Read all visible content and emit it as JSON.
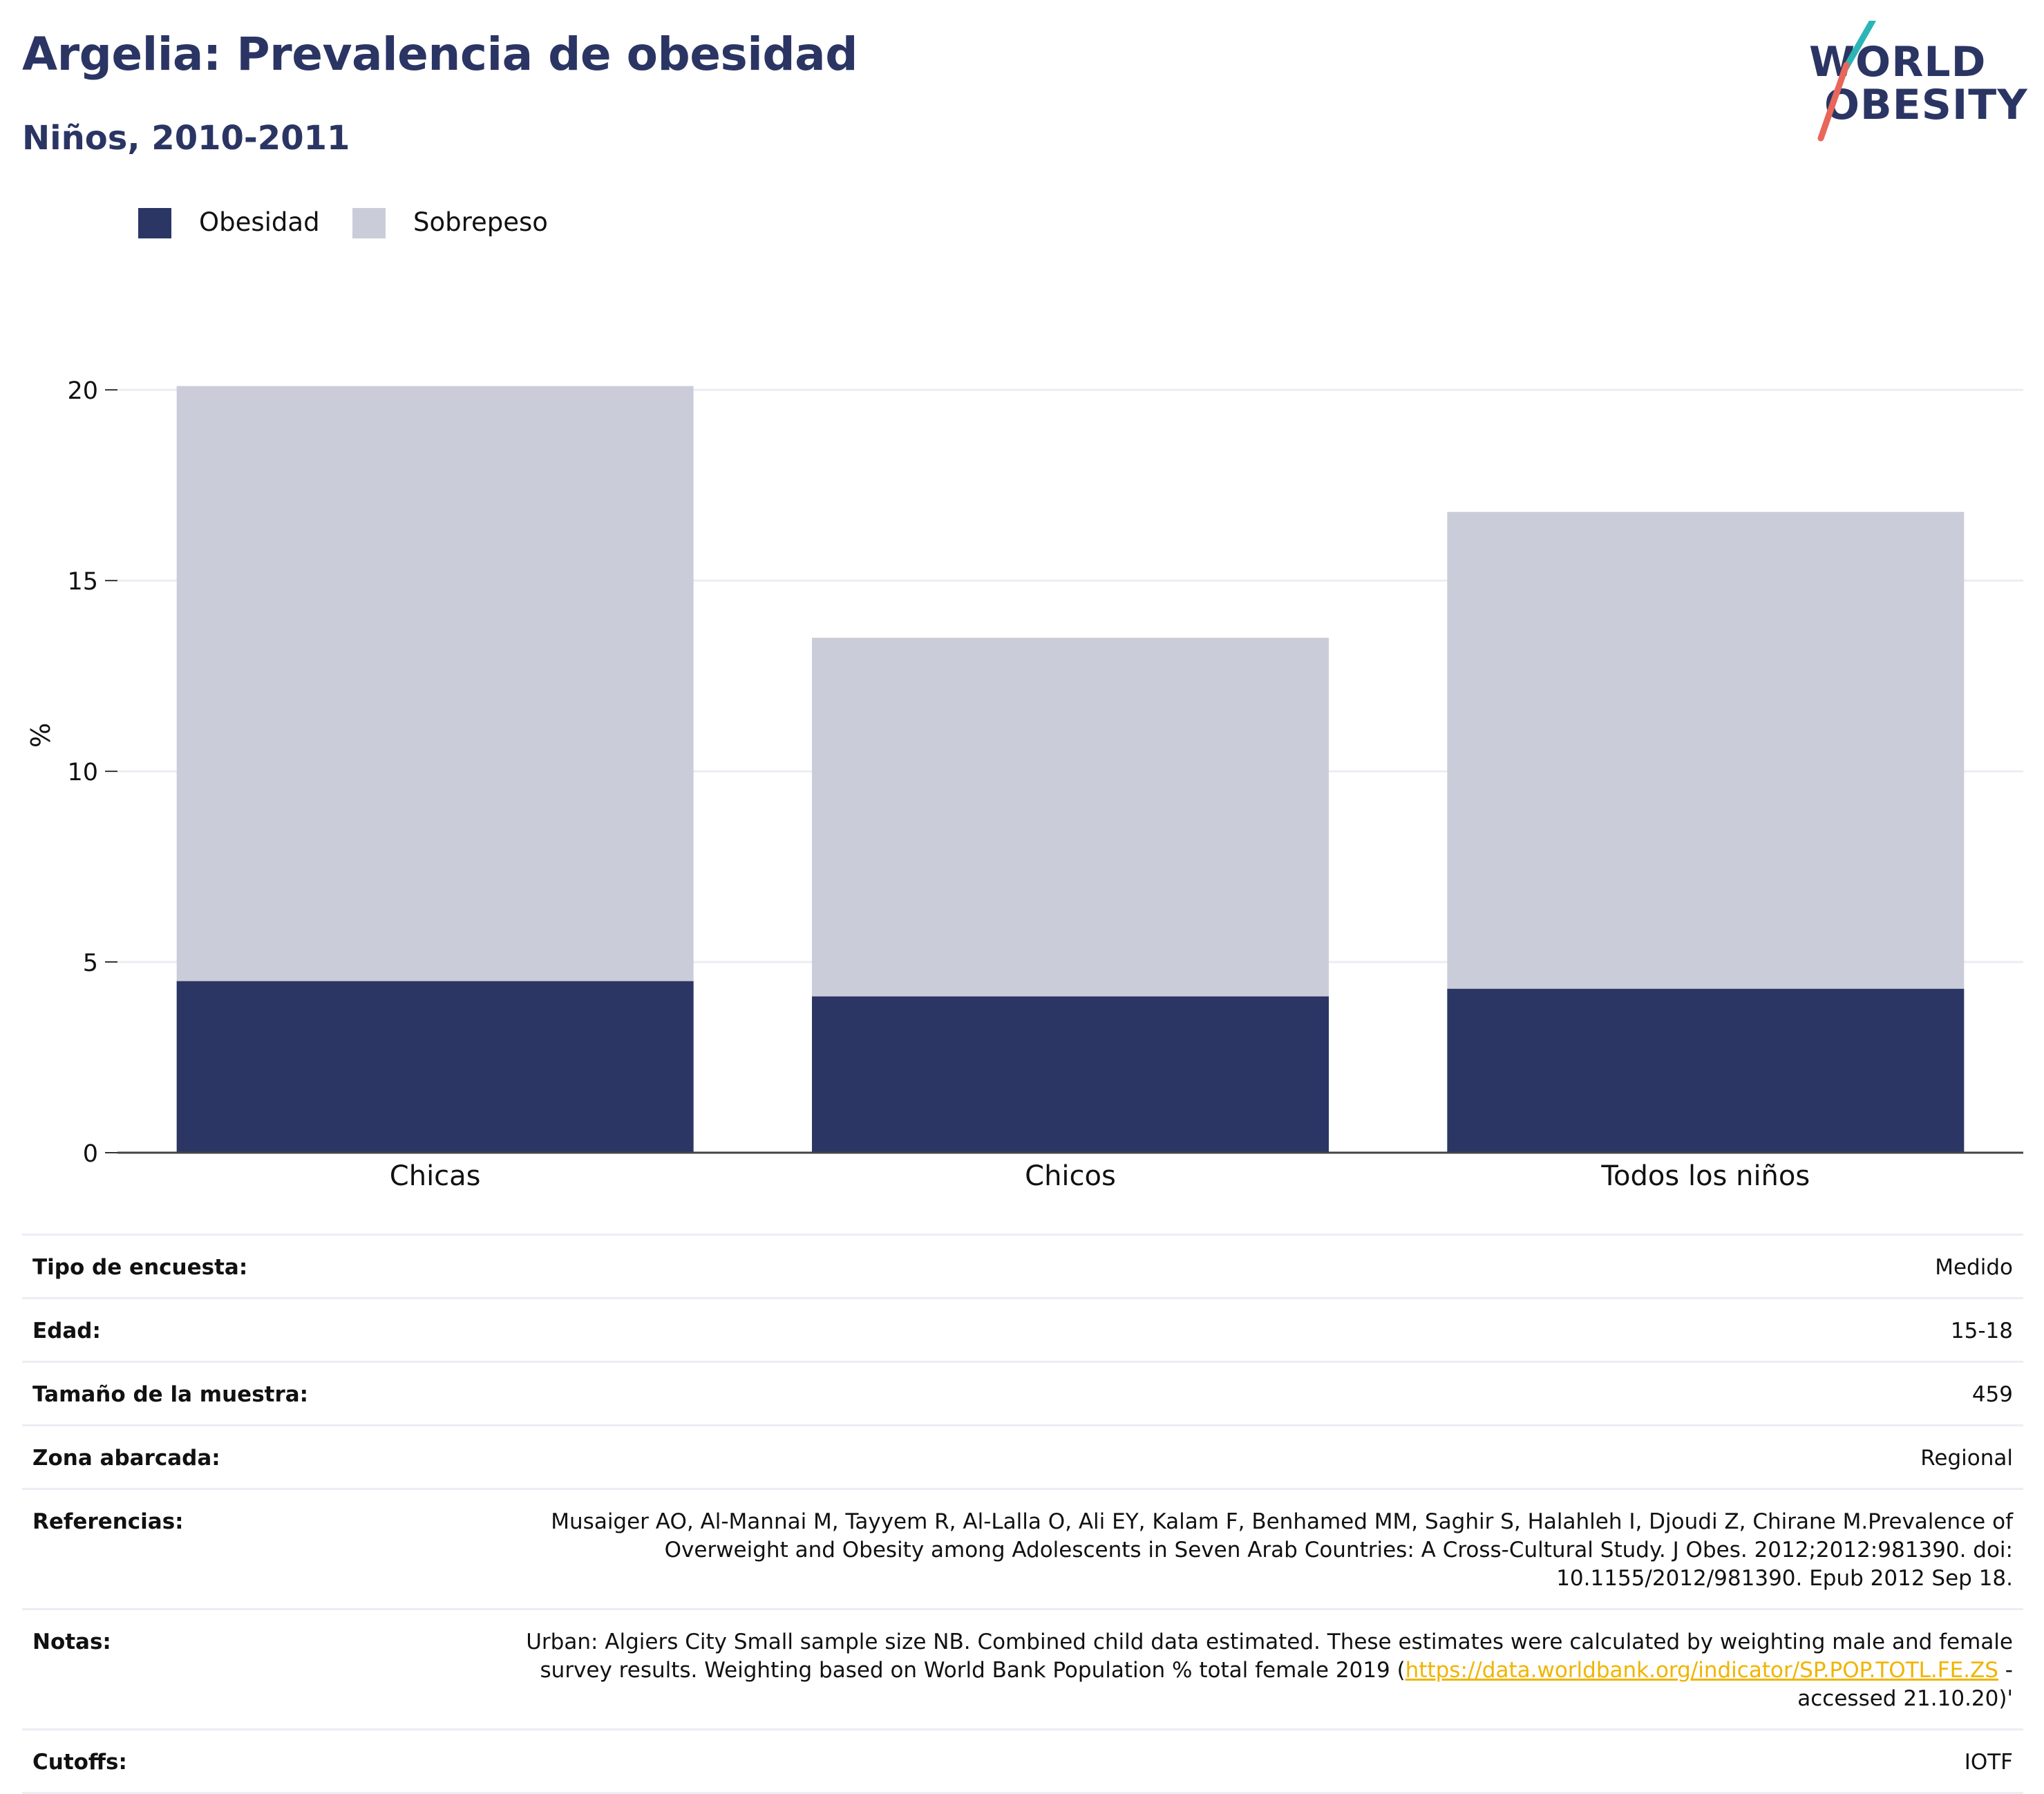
{
  "header": {
    "title": "Argelia: Prevalencia de obesidad",
    "subtitle": "Niños, 2010-2011"
  },
  "logo": {
    "line1": "WORLD",
    "line2": "OBESITY",
    "colors": {
      "text": "#2b3564",
      "teal": "#2bb5b5",
      "coral": "#e8675a"
    }
  },
  "legend": [
    {
      "label": "Obesidad",
      "color": "#2b3664"
    },
    {
      "label": "Sobrepeso",
      "color": "#cacdd9"
    }
  ],
  "chart_data": {
    "type": "bar",
    "stacked": true,
    "categories": [
      "Chicas",
      "Chicos",
      "Todos los niños"
    ],
    "series": [
      {
        "name": "Obesidad",
        "values": [
          4.5,
          4.1,
          4.3
        ],
        "color": "#2b3664"
      },
      {
        "name": "Sobrepeso",
        "values": [
          15.6,
          9.4,
          12.5
        ],
        "color": "#cacdd9"
      }
    ],
    "ylabel": "%",
    "ylim": [
      0,
      20.8
    ],
    "yticks": [
      0,
      5,
      10,
      15,
      20
    ],
    "grid": true,
    "legend_position": "top-left"
  },
  "info": [
    {
      "label": "Tipo de encuesta:",
      "value": "Medido"
    },
    {
      "label": "Edad:",
      "value": "15-18"
    },
    {
      "label": "Tamaño de la muestra:",
      "value": "459"
    },
    {
      "label": "Zona abarcada:",
      "value": "Regional"
    },
    {
      "label": "Referencias:",
      "value": "Musaiger AO, Al-Mannai M, Tayyem R, Al-Lalla O, Ali EY, Kalam F, Benhamed MM, Saghir S, Halahleh I, Djoudi Z, Chirane M.Prevalence of Overweight and Obesity among Adolescents in Seven Arab Countries: A Cross-Cultural Study. J Obes. 2012;2012:981390. doi: 10.1155/2012/981390. Epub 2012 Sep 18."
    },
    {
      "label": "Notas:",
      "value": "Urban: Algiers City Small sample size NB. Combined child data estimated. These estimates were calculated by weighting male and female survey results. Weighting based on World Bank Population % total female 2019 (",
      "link": "https://data.worldbank.org/indicator/SP.POP.TOTL.FE.ZS",
      "value_after": " - accessed 21.10.20)'"
    },
    {
      "label": "Cutoffs:",
      "value": "IOTF"
    }
  ]
}
